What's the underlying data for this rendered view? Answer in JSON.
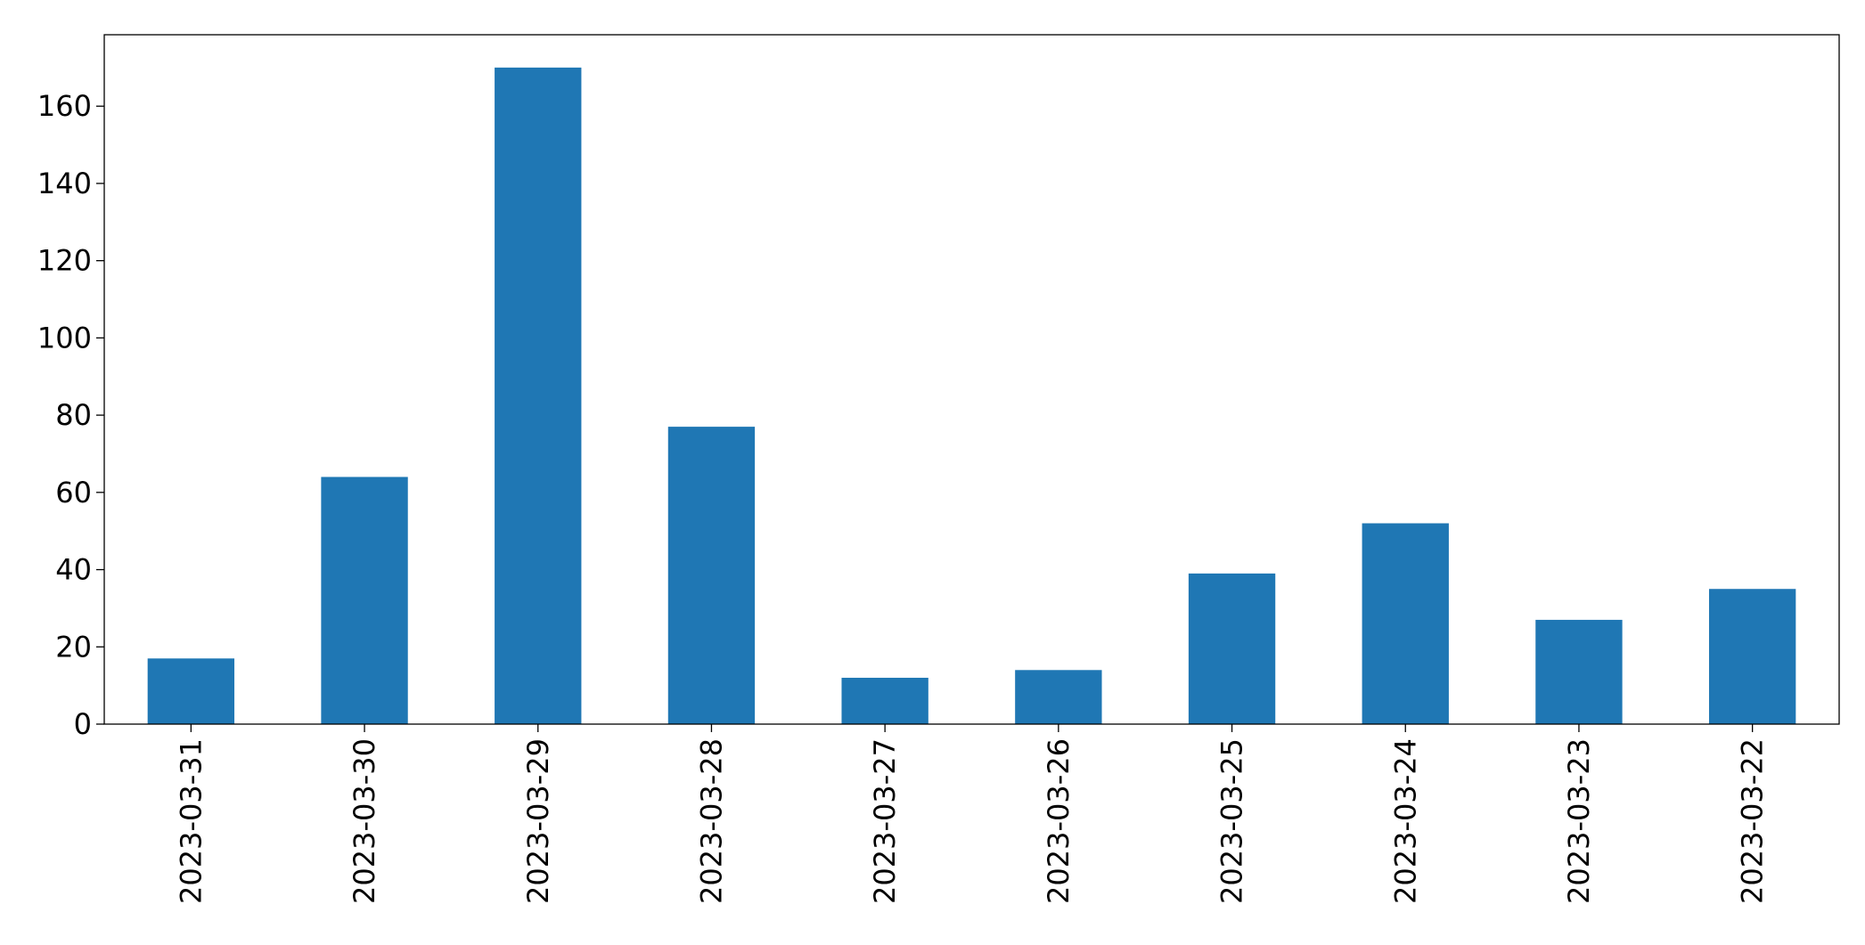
{
  "chart_data": {
    "type": "bar",
    "categories": [
      "2023-03-31",
      "2023-03-30",
      "2023-03-29",
      "2023-03-28",
      "2023-03-27",
      "2023-03-26",
      "2023-03-25",
      "2023-03-24",
      "2023-03-23",
      "2023-03-22"
    ],
    "values": [
      17,
      64,
      170,
      77,
      12,
      14,
      39,
      52,
      27,
      35
    ],
    "color": "#1f77b4",
    "ylim": [
      0,
      178.5
    ],
    "yticks": [
      0,
      20,
      40,
      60,
      80,
      100,
      120,
      140,
      160
    ],
    "grid": false
  }
}
